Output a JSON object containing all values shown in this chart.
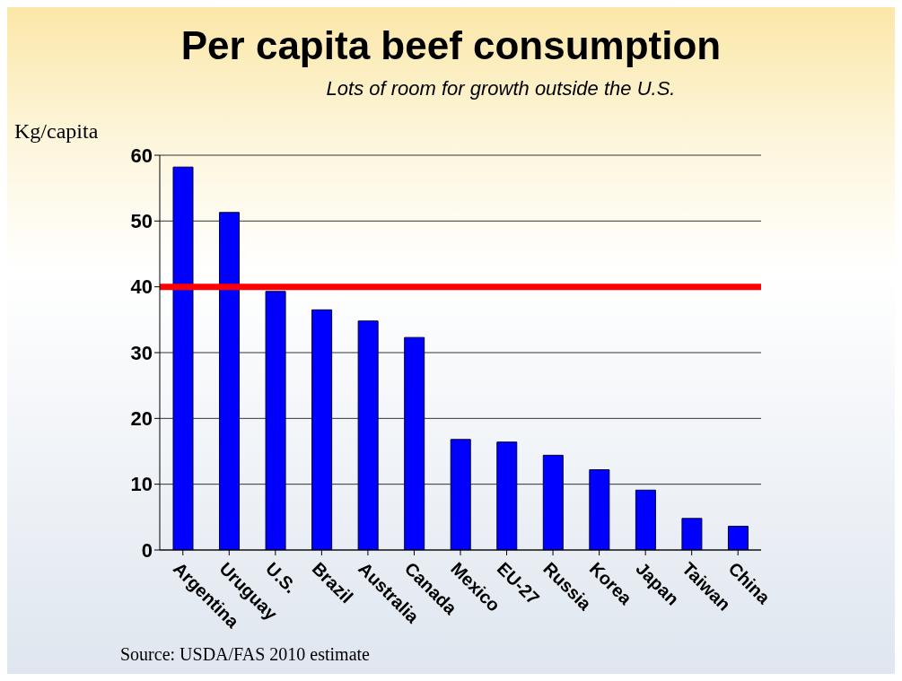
{
  "chart_data": {
    "type": "bar",
    "title": "Per capita beef consumption",
    "subtitle": "Lots of room for growth outside the U.S.",
    "ylabel": "Kg/capita",
    "categories": [
      "Argentina",
      "Uruguay",
      "U.S.",
      "Brazil",
      "Australia",
      "Canada",
      "Mexico",
      "EU-27",
      "Russia",
      "Korea",
      "Japan",
      "Taiwan",
      "China"
    ],
    "values": [
      58.2,
      51.3,
      39.3,
      36.5,
      34.8,
      32.3,
      16.8,
      16.4,
      14.4,
      12.2,
      9.1,
      4.8,
      3.6
    ],
    "color": "#0000ff",
    "ylim": [
      0,
      60
    ],
    "yticks": [
      0,
      10,
      20,
      30,
      40,
      50,
      60
    ],
    "grid": "y",
    "ref_lines": [
      {
        "axis": "y",
        "value": 40,
        "color": "#ff0000"
      }
    ],
    "annotations": [
      "Source: USDA/FAS 2010 estimate"
    ]
  }
}
